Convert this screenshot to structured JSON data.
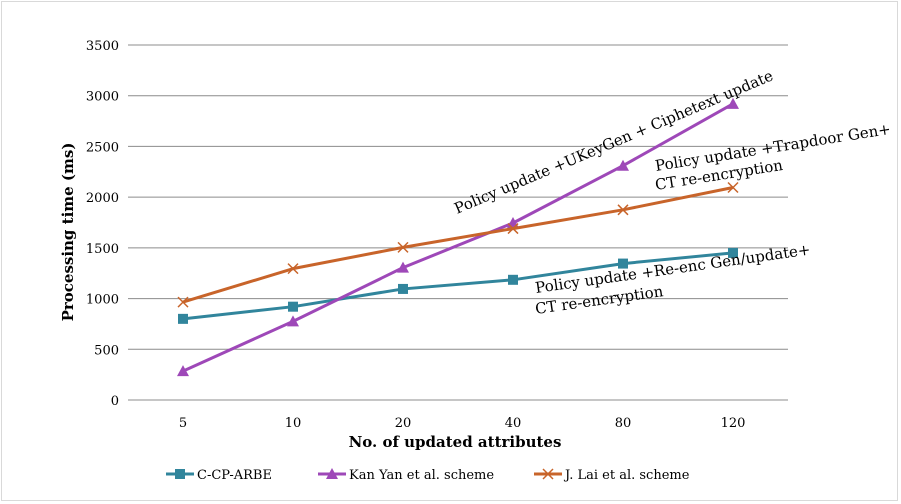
{
  "chart_data": {
    "type": "line",
    "title": "",
    "xlabel": "No. of updated attributes",
    "ylabel": "Processing time (ms)",
    "categories": [
      "5",
      "10",
      "20",
      "40",
      "80",
      "120"
    ],
    "y_ticks": [
      "0",
      "500",
      "1000",
      "1500",
      "2000",
      "2500",
      "3000",
      "3500"
    ],
    "ylim": [
      0,
      3500
    ],
    "grid": "horizontal",
    "legend_position": "bottom",
    "series": [
      {
        "name": "C-CP-ARBE",
        "color": "#31859c",
        "marker": "square",
        "values": [
          800,
          920,
          1095,
          1185,
          1345,
          1450
        ]
      },
      {
        "name": "Kan Yan et al. scheme",
        "color": "#9e48b8",
        "marker": "triangle",
        "values": [
          285,
          775,
          1305,
          1745,
          2310,
          2920
        ]
      },
      {
        "name": "J. Lai et al. scheme",
        "color": "#c8642a",
        "marker": "x",
        "values": [
          965,
          1295,
          1505,
          1690,
          1875,
          2095
        ]
      }
    ],
    "annotations": [
      "Policy update +UKeyGen + Ciphetext update",
      "Policy update +Trapdoor Gen+",
      "CT re-encryption",
      "Policy update +Re-enc Gen/update+",
      "CT re-encryption"
    ]
  }
}
